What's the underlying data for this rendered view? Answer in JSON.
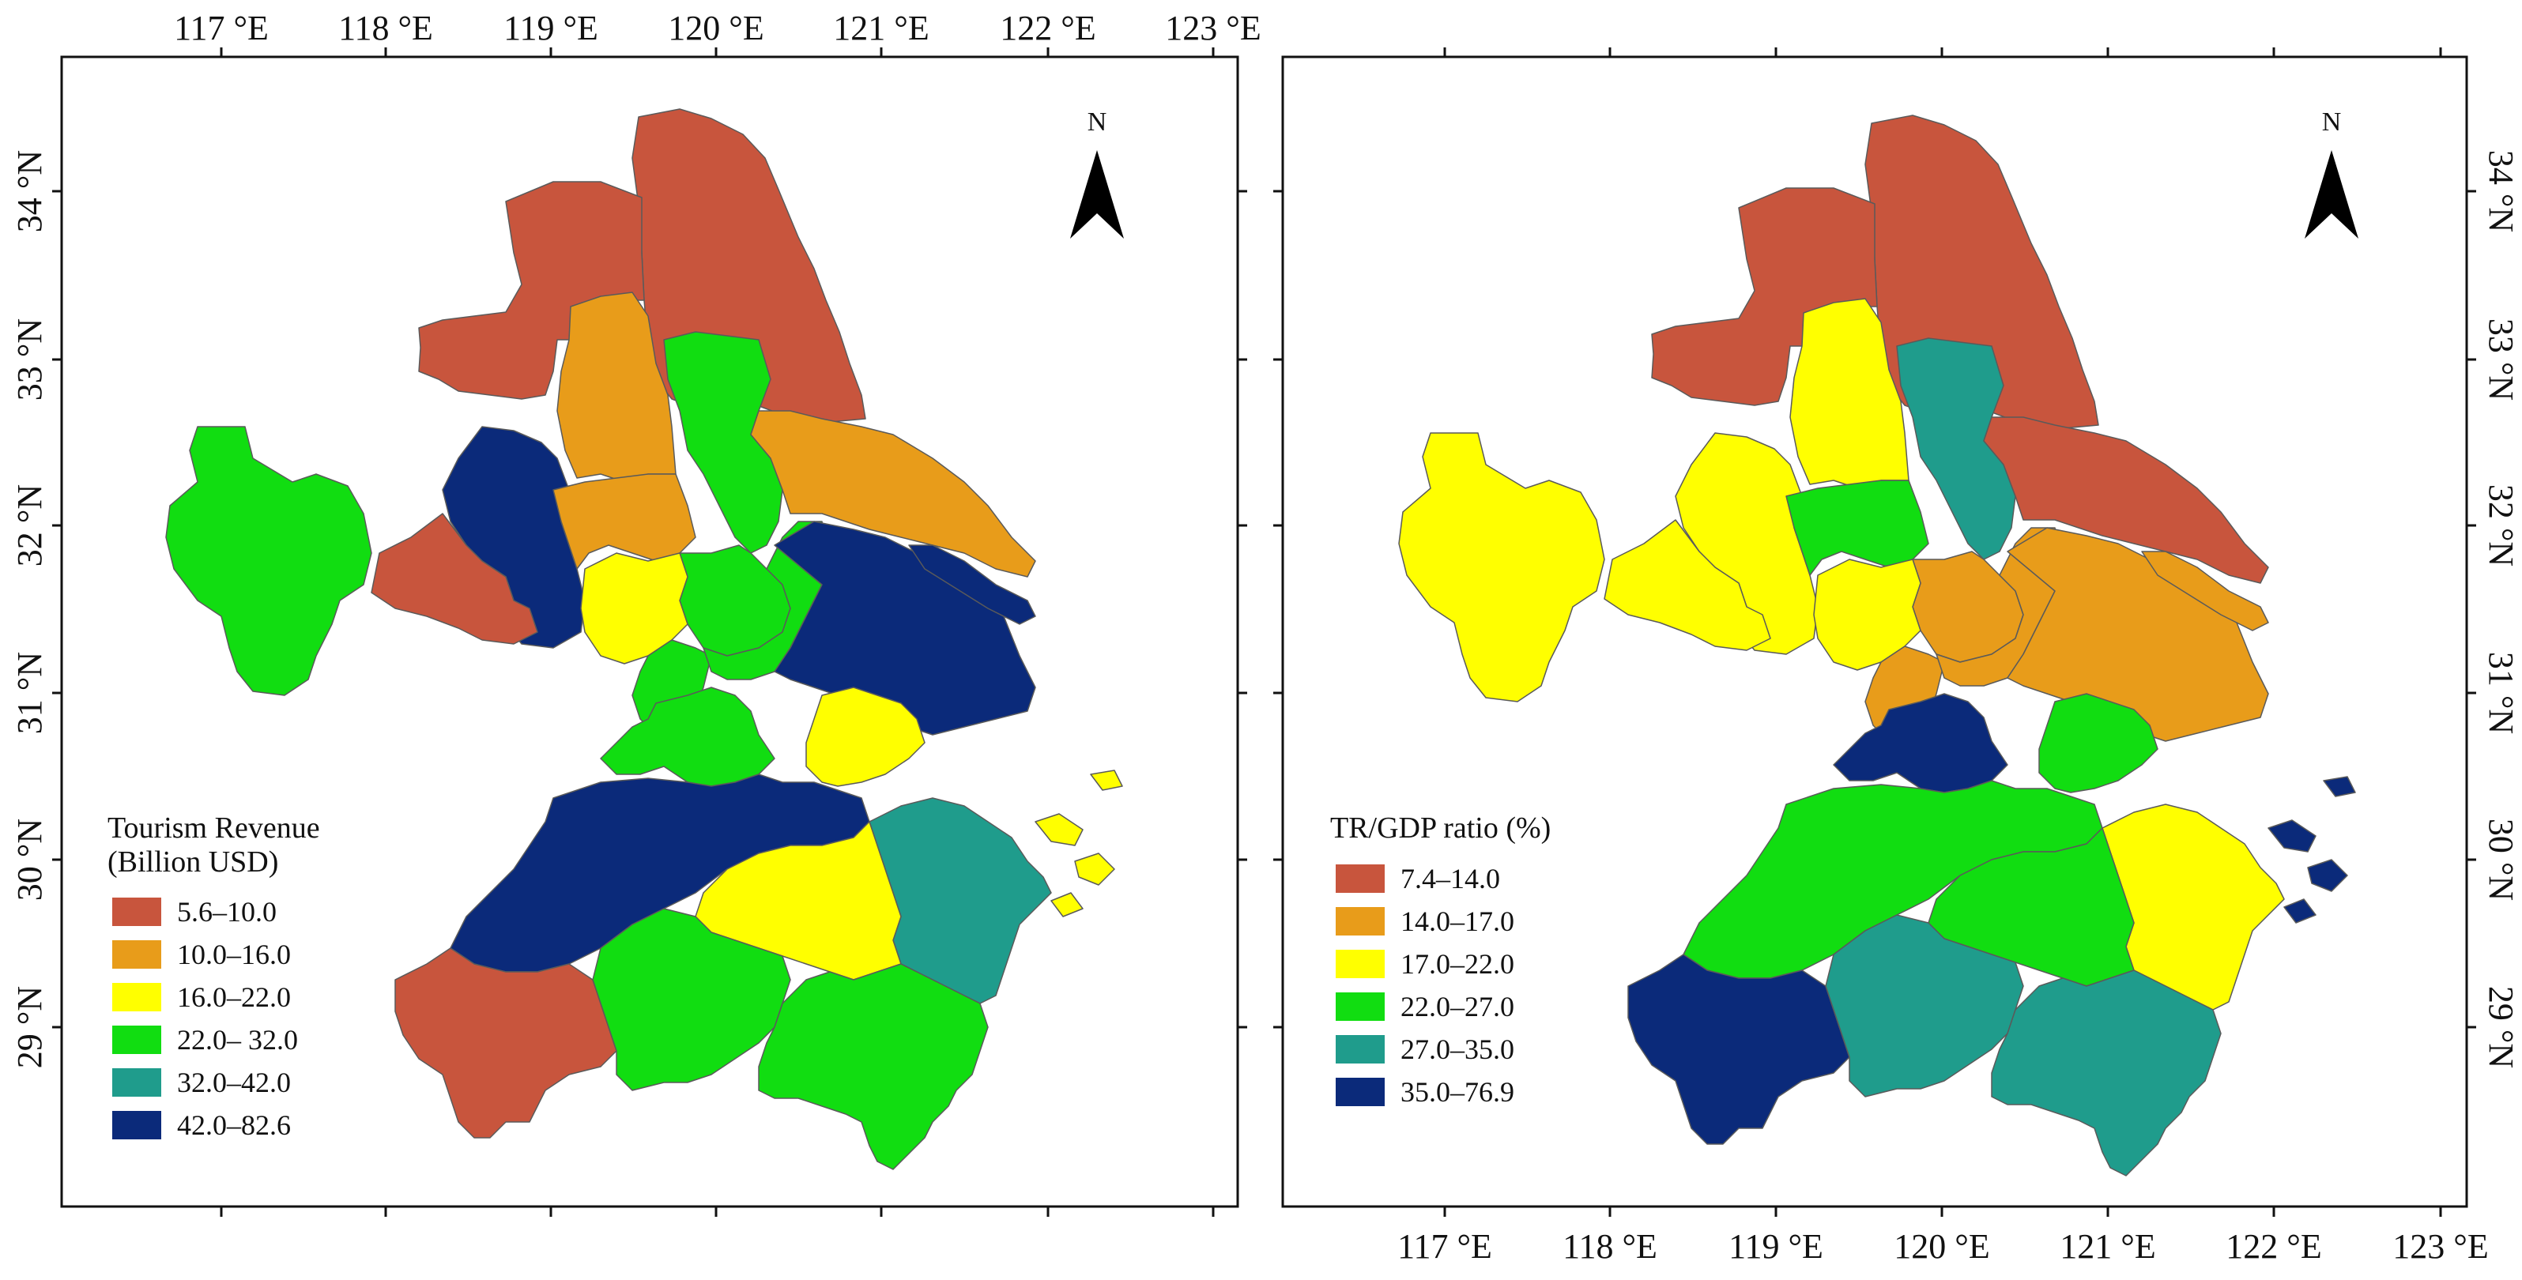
{
  "palette": {
    "c1": "#c8553d",
    "c2": "#e89c1a",
    "c3": "#ffff00",
    "c4": "#11dd11",
    "c5": "#1f9c8c",
    "c6": "#0b2a7a"
  },
  "maps": [
    {
      "id": "left",
      "top_lon_labels": [
        "117 °E",
        "118 °E",
        "119 °E",
        "120 °E",
        "121 °E",
        "122 °E",
        "123 °E"
      ],
      "lat_labels": [
        "34 °N",
        "33 °N",
        "32 °N",
        "31 °N",
        "30 °N",
        "29 °N"
      ],
      "north_label": "N",
      "legend": {
        "title_line1": "Tourism Revenue",
        "title_line2": "(Billion USD)",
        "classes": [
          {
            "label": "5.6–10.0",
            "color_key": "c1"
          },
          {
            "label": "10.0–16.0",
            "color_key": "c2"
          },
          {
            "label": "16.0–22.0",
            "color_key": "c3"
          },
          {
            "label": "22.0– 32.0",
            "color_key": "c4"
          },
          {
            "label": "32.0–42.0",
            "color_key": "c5"
          },
          {
            "label": "42.0–82.6",
            "color_key": "c6"
          }
        ]
      }
    },
    {
      "id": "right",
      "bottom_lon_labels": [
        "117 °E",
        "118 °E",
        "119 °E",
        "120 °E",
        "121 °E",
        "122 °E",
        "123 °E"
      ],
      "lat_labels": [
        "34 °N",
        "33 °N",
        "32 °N",
        "31 °N",
        "30 °N",
        "29 °N"
      ],
      "north_label": "N",
      "legend": {
        "title_line1": "TR/GDP ratio (%)",
        "classes": [
          {
            "label": "7.4–14.0",
            "color_key": "c1"
          },
          {
            "label": "14.0–17.0",
            "color_key": "c2"
          },
          {
            "label": "17.0–22.0",
            "color_key": "c3"
          },
          {
            "label": "22.0–27.0",
            "color_key": "c4"
          },
          {
            "label": "27.0–35.0",
            "color_key": "c5"
          },
          {
            "label": "35.0–76.9",
            "color_key": "c6"
          }
        ]
      }
    }
  ],
  "regions": {
    "left": {
      "north_big": "c1",
      "northwest": "c1",
      "huaian": "c2",
      "sq_green": "c4",
      "yancheng_e": "c2",
      "chuzhou": "c6",
      "hefei": "c4",
      "maanshan": "c1",
      "nanjing": "c2",
      "yangzhou": "c4",
      "zhenjiang": "c3",
      "changzhou": "c4",
      "taizhou_js": "c4",
      "suzhou_nt": "c6",
      "chongming": "c6",
      "wuxi": "c4",
      "jiaxing": "c3",
      "xuancheng": "c4",
      "huzhou_hz": "c6",
      "ningbo": "c5",
      "shaoxing": "c3",
      "huangshan": "c1",
      "jinhua": "c4",
      "taizhou_zj": "c4",
      "islands": "c3"
    },
    "right": {
      "north_big": "c1",
      "northwest": "c1",
      "huaian": "c3",
      "sq_green": "c5",
      "yancheng_e": "c1",
      "chuzhou": "c3",
      "hefei": "c3",
      "maanshan": "c3",
      "nanjing": "c4",
      "yangzhou": "c2",
      "zhenjiang": "c3",
      "changzhou": "c2",
      "taizhou_js": "c2",
      "suzhou_nt": "c2",
      "chongming": "c2",
      "wuxi": "c6",
      "jiaxing": "c4",
      "xuancheng": "c4",
      "huzhou_hz": "c4",
      "ningbo": "c3",
      "shaoxing": "c4",
      "huangshan": "c6",
      "jinhua": "c5",
      "taizhou_zj": "c5",
      "islands": "c6"
    }
  }
}
